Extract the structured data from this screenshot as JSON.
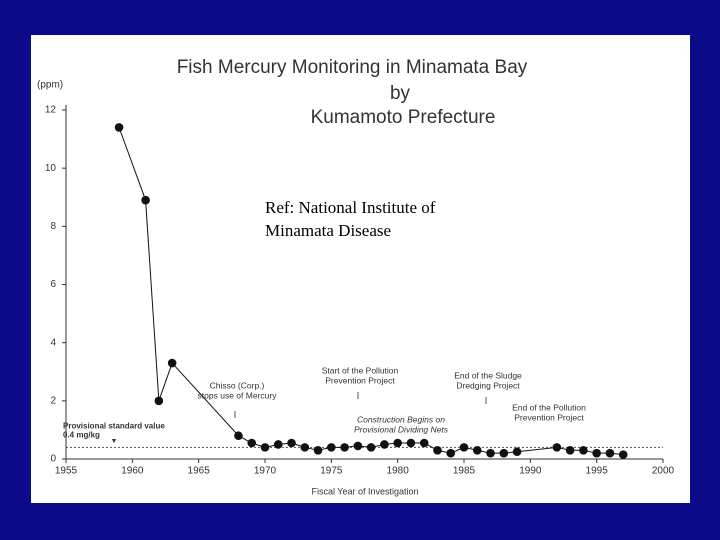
{
  "chart_data": {
    "type": "line",
    "title": [
      "Fish Mercury Monitoring in Minamata Bay",
      "by",
      "Kumamoto Prefecture"
    ],
    "reference": [
      "Ref: National Institute of",
      "Minamata Disease"
    ],
    "x_label": "Fiscal Year of Investigation",
    "y_label": "(ppm)",
    "x": [
      1959,
      1961,
      1962,
      1963,
      1968,
      1969,
      1970,
      1971,
      1972,
      1973,
      1974,
      1975,
      1976,
      1977,
      1978,
      1979,
      1980,
      1981,
      1982,
      1983,
      1984,
      1985,
      1986,
      1987,
      1988,
      1989,
      1992,
      1993,
      1994,
      1995,
      1996,
      1997
    ],
    "series": [
      {
        "color": "#111111",
        "values": [
          11.4,
          8.9,
          2.0,
          3.3,
          0.8,
          0.55,
          0.4,
          0.5,
          0.55,
          0.4,
          0.3,
          0.4,
          0.4,
          0.45,
          0.4,
          0.5,
          0.55,
          0.55,
          0.55,
          0.3,
          0.2,
          0.4,
          0.3,
          0.2,
          0.2,
          0.25,
          0.4,
          0.3,
          0.3,
          0.2,
          0.2,
          0.15
        ]
      }
    ],
    "xlim": [
      1955,
      2000
    ],
    "xticks": [
      1955,
      1960,
      1965,
      1970,
      1975,
      1980,
      1985,
      1990,
      1995,
      2000
    ],
    "ylim": [
      0,
      12
    ],
    "yticks": [
      0,
      2,
      4,
      6,
      8,
      10,
      12
    ],
    "reference_line": {
      "value": 0.4,
      "label": [
        "Provisional standard value",
        "0.4 mg/kg"
      ]
    },
    "annotations": [
      {
        "x": 1968,
        "lines": [
          "Chisso (Corp.)",
          "stops use of Mercury"
        ]
      },
      {
        "x": 1977,
        "lines": [
          "Start of the Pollution",
          "Prevention Project"
        ]
      },
      {
        "x": 1980,
        "lines": [
          "Construction Begins on",
          "Provisional Dividing Nets"
        ]
      },
      {
        "x": 1987,
        "lines": [
          "End of the Sludge",
          "Dredging Project"
        ]
      },
      {
        "x": 1991,
        "lines": [
          "End of the Pollution",
          "Prevention Project"
        ]
      }
    ]
  }
}
